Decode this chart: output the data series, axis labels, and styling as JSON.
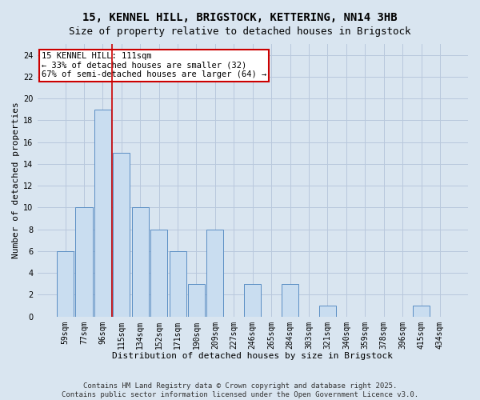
{
  "title": "15, KENNEL HILL, BRIGSTOCK, KETTERING, NN14 3HB",
  "subtitle": "Size of property relative to detached houses in Brigstock",
  "xlabel": "Distribution of detached houses by size in Brigstock",
  "ylabel": "Number of detached properties",
  "categories": [
    "59sqm",
    "77sqm",
    "96sqm",
    "115sqm",
    "134sqm",
    "152sqm",
    "171sqm",
    "190sqm",
    "209sqm",
    "227sqm",
    "246sqm",
    "265sqm",
    "284sqm",
    "303sqm",
    "321sqm",
    "340sqm",
    "359sqm",
    "378sqm",
    "396sqm",
    "415sqm",
    "434sqm"
  ],
  "values": [
    6,
    10,
    19,
    15,
    10,
    8,
    6,
    3,
    8,
    0,
    3,
    0,
    3,
    0,
    1,
    0,
    0,
    0,
    0,
    1,
    0
  ],
  "bar_color": "#c9ddf0",
  "bar_edge_color": "#5b8ec4",
  "grid_color": "#b8c8dc",
  "background_color": "#d9e5f0",
  "annotation_box_color": "#ffffff",
  "annotation_border_color": "#cc0000",
  "red_line_x": 2.5,
  "red_line_color": "#cc0000",
  "annotation_line1": "15 KENNEL HILL: 111sqm",
  "annotation_line2": "← 33% of detached houses are smaller (32)",
  "annotation_line3": "67% of semi-detached houses are larger (64) →",
  "ylim": [
    0,
    25
  ],
  "yticks": [
    0,
    2,
    4,
    6,
    8,
    10,
    12,
    14,
    16,
    18,
    20,
    22,
    24
  ],
  "footer": "Contains HM Land Registry data © Crown copyright and database right 2025.\nContains public sector information licensed under the Open Government Licence v3.0.",
  "title_fontsize": 10,
  "subtitle_fontsize": 9,
  "axis_label_fontsize": 8,
  "tick_fontsize": 7,
  "annotation_fontsize": 7.5,
  "footer_fontsize": 6.5
}
